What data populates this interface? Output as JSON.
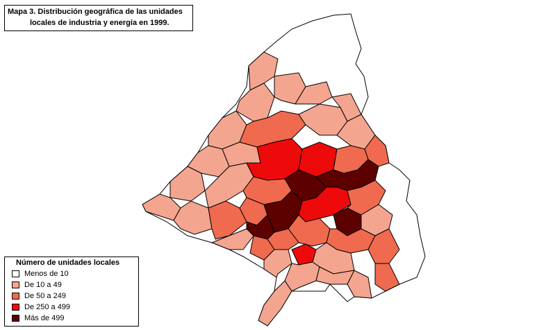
{
  "title": {
    "line1": "Mapa 3. Distribución geográfica de las unidades",
    "line2": "locales  de industria y energía en 1999."
  },
  "legend": {
    "title": "Número de unidades locales",
    "items": [
      {
        "label": "Menos de 10",
        "color": "#ffffff"
      },
      {
        "label": "De 10 a 49",
        "color": "#f4a58f"
      },
      {
        "label": "De 50 a 249",
        "color": "#f06a4f"
      },
      {
        "label": "De 250 a 499",
        "color": "#ee0a0a"
      },
      {
        "label": "Más de 499",
        "color": "#5c0000"
      }
    ]
  }
}
